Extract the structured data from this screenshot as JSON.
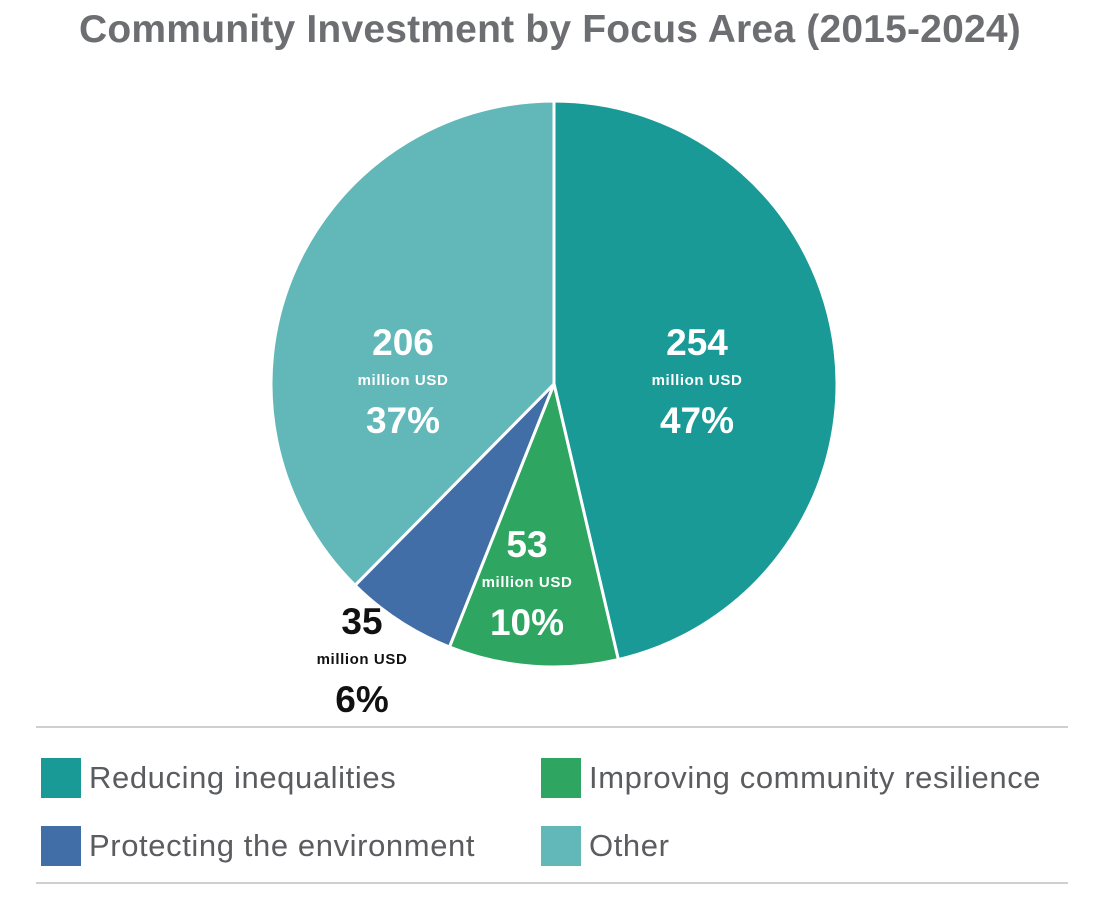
{
  "chart_data": {
    "type": "pie",
    "title": "Community Investment by Focus Area (2015-2024)",
    "unit": "million USD",
    "slices": [
      {
        "name": "Reducing inequalities",
        "value": 254,
        "value_label": "254",
        "percent_label": "47%",
        "color": "#1a9a97",
        "label_color": "#ffffff"
      },
      {
        "name": "Improving community resilience",
        "value": 53,
        "value_label": "53",
        "percent_label": "10%",
        "color": "#2ea662",
        "label_color": "#ffffff"
      },
      {
        "name": "Protecting the environment",
        "value": 35,
        "value_label": "35",
        "percent_label": "6%",
        "color": "#416ea6",
        "label_color": "#111111"
      },
      {
        "name": "Other",
        "value": 206,
        "value_label": "206",
        "percent_label": "37%",
        "color": "#62b8b8",
        "label_color": "#ffffff"
      }
    ],
    "legend": {
      "placement": "bottom",
      "items": [
        {
          "label": "Reducing inequalities",
          "color": "#1a9a97"
        },
        {
          "label": "Improving community resilience",
          "color": "#2ea662"
        },
        {
          "label": "Protecting the environment",
          "color": "#416ea6"
        },
        {
          "label": "Other",
          "color": "#62b8b8"
        }
      ]
    }
  }
}
